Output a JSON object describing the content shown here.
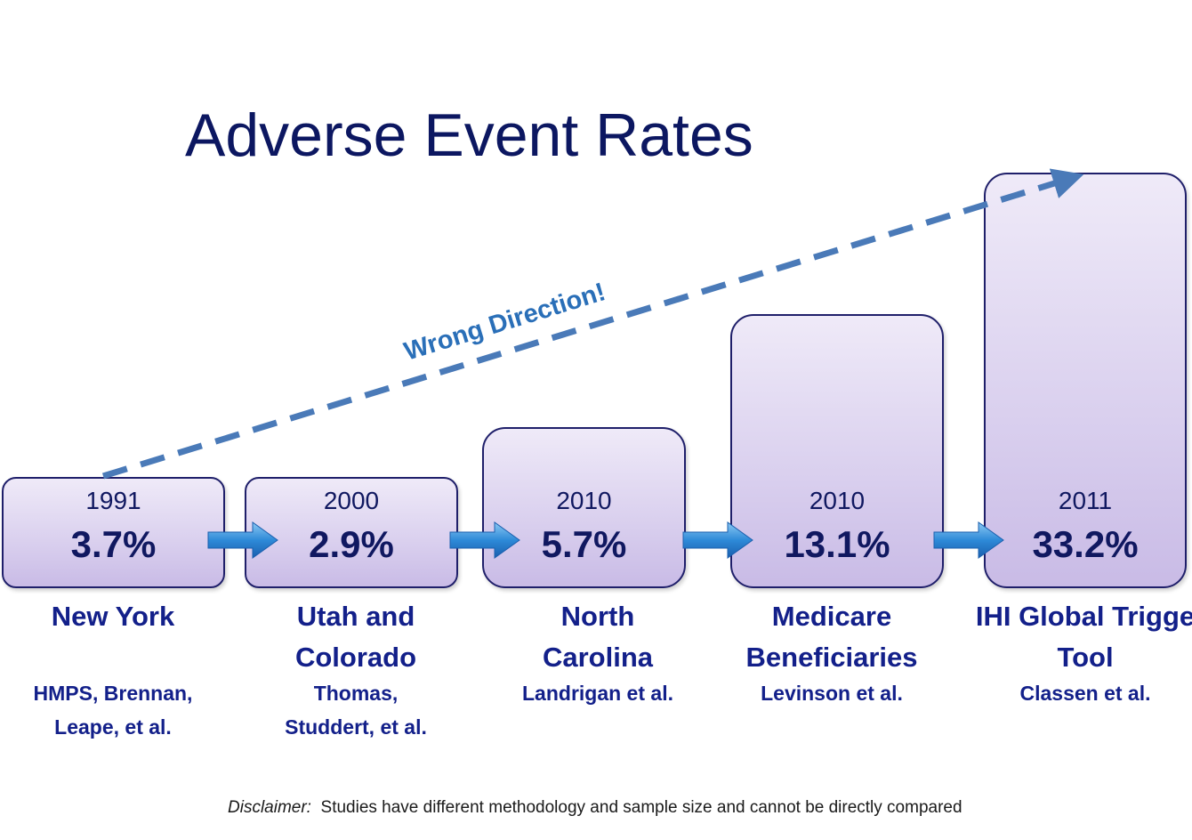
{
  "title": "Adverse Event Rates",
  "annotation": "Wrong Direction!",
  "disclaimer": {
    "label": "Disclaimer:",
    "text": "Studies have different methodology and sample size and cannot be directly compared"
  },
  "chart_data": {
    "type": "bar",
    "title": "Adverse Event Rates",
    "categories": [
      "New York",
      "Utah and Colorado",
      "North Carolina",
      "Medicare Beneficiaries",
      "IHI Global Trigger Tool"
    ],
    "years": [
      "1991",
      "2000",
      "2010",
      "2010",
      "2011"
    ],
    "values": [
      3.7,
      2.9,
      5.7,
      13.1,
      33.2
    ],
    "value_labels": [
      "3.7%",
      "2.9%",
      "5.7%",
      "13.1%",
      "33.2%"
    ],
    "unit": "%",
    "authors": [
      [
        "HMPS, Brennan,",
        "Leape, et al."
      ],
      [
        "Thomas,",
        "Studdert, et al."
      ],
      [
        "Landrigan et al."
      ],
      [
        "Levinson et al."
      ],
      [
        "Classen et al."
      ]
    ],
    "location_lines": [
      [
        "New York"
      ],
      [
        "Utah and",
        "Colorado"
      ],
      [
        "North",
        "Carolina"
      ],
      [
        "Medicare",
        "Beneficiaries"
      ],
      [
        "IHI Global Trigge",
        "Tool"
      ]
    ],
    "annotation": "Wrong Direction!",
    "colors": {
      "box_top": "#efeaf8",
      "box_bottom": "#c9bbe6",
      "text": "#13208a",
      "arrow": "#4a7ab8",
      "flow_arrow": "#2e8ad8"
    }
  }
}
